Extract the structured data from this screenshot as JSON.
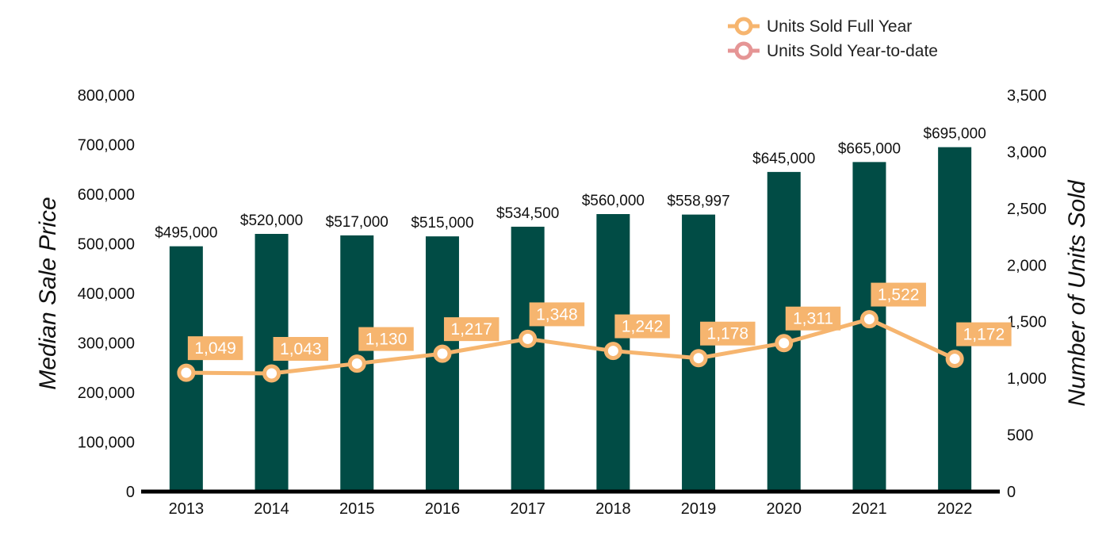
{
  "chart_data": {
    "type": "bar",
    "categories": [
      "2013",
      "2014",
      "2015",
      "2016",
      "2017",
      "2018",
      "2019",
      "2020",
      "2021",
      "2022"
    ],
    "bar_series": {
      "name": "Median Sale Price",
      "values": [
        495000,
        520000,
        517000,
        515000,
        534500,
        560000,
        558997,
        645000,
        665000,
        695000
      ],
      "labels": [
        "$495,000",
        "$520,000",
        "$517,000",
        "$515,000",
        "$534,500",
        "$560,000",
        "$558,997",
        "$645,000",
        "$665,000",
        "$695,000"
      ],
      "color": "#014c45"
    },
    "line_series": [
      {
        "name": "Units Sold Full Year",
        "values": [
          1049,
          1043,
          1130,
          1217,
          1348,
          1242,
          1178,
          1311,
          1522,
          1172
        ],
        "labels": [
          "1,049",
          "1,043",
          "1,130",
          "1,217",
          "1,348",
          "1,242",
          "1,178",
          "1,311",
          "1,522",
          "1,172"
        ],
        "color": "#f6b56f"
      }
    ],
    "legend": [
      {
        "label": "Units Sold Full Year",
        "color": "#f6b56f"
      },
      {
        "label": "Units Sold Year-to-date",
        "color": "#e59595"
      }
    ],
    "legend_position": "top-right",
    "y_left": {
      "label": "Median Sale Price",
      "range": [
        0,
        800000
      ],
      "ticks": [
        0,
        100000,
        200000,
        300000,
        400000,
        500000,
        600000,
        700000,
        800000
      ],
      "tick_labels": [
        "0",
        "100,000",
        "200,000",
        "300,000",
        "400,000",
        "500,000",
        "600,000",
        "700,000",
        "800,000"
      ]
    },
    "y_right": {
      "label": "Number of Units Sold",
      "range": [
        0,
        3500
      ],
      "ticks": [
        0,
        500,
        1000,
        1500,
        2000,
        2500,
        3000,
        3500
      ],
      "tick_labels": [
        "0",
        "500",
        "1,000",
        "1,500",
        "2,000",
        "2,500",
        "3,000",
        "3,500"
      ]
    },
    "grid": false
  }
}
